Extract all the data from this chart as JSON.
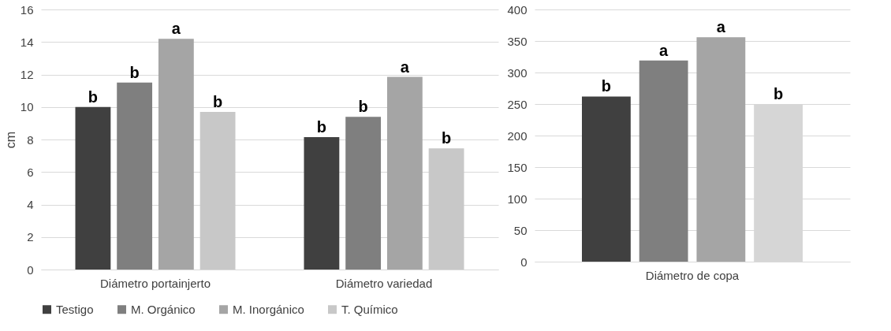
{
  "chart_data": [
    {
      "type": "bar",
      "ylabel": "cm",
      "categories": [
        "Diámetro portainjerto",
        "Diámetro variedad"
      ],
      "ylim": [
        0,
        16
      ],
      "yticks": [
        0,
        2,
        4,
        6,
        8,
        10,
        12,
        14,
        16
      ],
      "grid": "y",
      "legend": "bottom",
      "series": [
        {
          "name": "Testigo",
          "color": "#404040",
          "values": [
            10.0,
            8.15
          ],
          "value_labels": [
            "b",
            "b"
          ]
        },
        {
          "name": "M. Orgánico",
          "color": "#7f7f7f",
          "values": [
            11.5,
            9.4
          ],
          "value_labels": [
            "b",
            "b"
          ]
        },
        {
          "name": "M. Inorgánico",
          "color": "#a5a5a5",
          "values": [
            14.2,
            11.85
          ],
          "value_labels": [
            "a",
            "a"
          ]
        },
        {
          "name": "T. Químico",
          "color": "#c8c8c8",
          "values": [
            9.7,
            7.45
          ],
          "value_labels": [
            "b",
            "b"
          ]
        }
      ]
    },
    {
      "type": "bar",
      "categories": [
        "Diámetro de copa"
      ],
      "ylim": [
        0,
        400
      ],
      "yticks": [
        0,
        50,
        100,
        150,
        200,
        250,
        300,
        350,
        400
      ],
      "grid": "y",
      "series": [
        {
          "color": "#404040",
          "values": [
            262
          ],
          "value_labels": [
            "b"
          ]
        },
        {
          "color": "#7f7f7f",
          "values": [
            319
          ],
          "value_labels": [
            "a"
          ]
        },
        {
          "color": "#a5a5a5",
          "values": [
            356
          ],
          "value_labels": [
            "a"
          ]
        },
        {
          "color": "#d6d6d6",
          "values": [
            250
          ],
          "value_labels": [
            "b"
          ]
        }
      ]
    }
  ]
}
